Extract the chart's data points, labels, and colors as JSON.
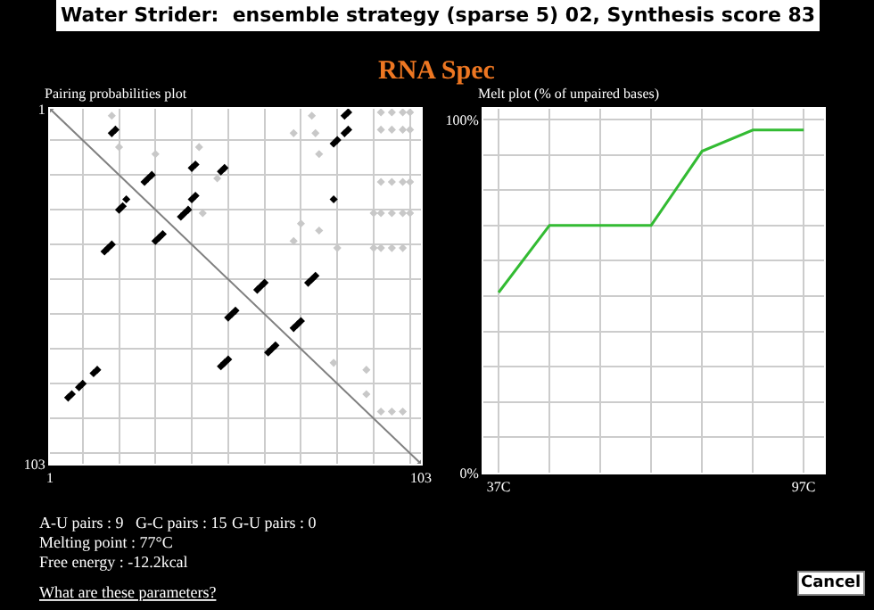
{
  "chart_data": [
    {
      "type": "scatter",
      "title": "Pairing probabilities plot",
      "xlim": [
        1,
        103
      ],
      "ylim": [
        103,
        1
      ],
      "xticks": [
        1,
        {
          "value": 10,
          "label": null
        },
        {
          "value": 20,
          "label": null
        },
        {
          "value": 30,
          "label": null
        },
        {
          "value": 40,
          "label": null
        },
        {
          "value": 50,
          "label": null
        },
        {
          "value": 60,
          "label": null
        },
        {
          "value": 70,
          "label": null
        },
        {
          "value": 80,
          "label": null
        },
        {
          "value": 90,
          "label": null
        },
        {
          "value": 100,
          "label": null
        },
        103
      ],
      "yticks": [
        1,
        {
          "value": 10,
          "label": null
        },
        {
          "value": 20,
          "label": null
        },
        {
          "value": 30,
          "label": null
        },
        {
          "value": 40,
          "label": null
        },
        {
          "value": 50,
          "label": null
        },
        {
          "value": 60,
          "label": null
        },
        {
          "value": 70,
          "label": null
        },
        {
          "value": 80,
          "label": null
        },
        {
          "value": 90,
          "label": null
        },
        {
          "value": 100,
          "label": null
        },
        103
      ],
      "grid": true,
      "marker": "diamond",
      "series": [
        {
          "color": "#000000",
          "x": [
            20,
            21,
            22,
            16,
            17,
            18,
            6,
            7,
            9,
            10,
            13,
            14,
            30,
            31,
            32,
            37,
            38,
            39,
            48,
            49,
            50,
            50,
            51,
            52,
            58,
            59,
            60,
            61,
            62,
            63,
            68,
            69,
            70,
            72,
            73,
            74,
            79,
            80,
            82,
            83,
            82,
            83,
            79,
            18,
            19,
            40,
            41,
            48,
            49,
            27,
            28,
            29,
            40,
            41
          ],
          "values": [
            30,
            29,
            27,
            42,
            41,
            40,
            84,
            83,
            81,
            80,
            77,
            76,
            39,
            38,
            37,
            32,
            31,
            30,
            75,
            74,
            73,
            61,
            60,
            59,
            53,
            52,
            51,
            71,
            70,
            69,
            64,
            63,
            62,
            51,
            50,
            49,
            11,
            10,
            8,
            7,
            3,
            2,
            27,
            8,
            7,
            18,
            17,
            19,
            18,
            22,
            21,
            20,
            27,
            26
          ]
        },
        {
          "color": "#c8c8c8",
          "x": [
            92,
            95,
            98,
            100,
            92,
            95,
            98,
            100,
            92,
            95,
            98,
            100,
            90,
            92,
            95,
            98,
            100,
            90,
            92,
            95,
            98,
            92,
            95,
            98,
            88,
            88,
            79,
            75,
            74,
            68,
            73,
            18,
            20,
            30,
            42,
            47,
            43,
            70,
            75,
            68,
            80
          ],
          "values": [
            2,
            2,
            2,
            2,
            7,
            7,
            7,
            7,
            22,
            22,
            22,
            22,
            31,
            31,
            31,
            31,
            31,
            41,
            41,
            41,
            41,
            88,
            88,
            88,
            76,
            83,
            74,
            14,
            8,
            8,
            3,
            3,
            12,
            14,
            12,
            21,
            31,
            34,
            36,
            39,
            41
          ]
        },
        {
          "type": "line",
          "color": "#808080",
          "x": [
            1,
            103
          ],
          "values": [
            1,
            103
          ]
        }
      ],
      "annotations": [
        "Water Strider:  ensemble strategy (sparse 5) 02, Synthesis score 83",
        "RNA Spec",
        "A-U pairs : 9",
        "G-C pairs : 15",
        "G-U pairs : 0",
        "Melting point : 77°C",
        "Free energy : -12.2kcal",
        "What are these parameters?",
        "Cancel"
      ]
    },
    {
      "type": "line",
      "title": "Melt plot (% of unpaired bases)",
      "x": [
        37,
        47,
        57,
        67,
        77,
        87,
        97
      ],
      "values": [
        51,
        70,
        70,
        70,
        91,
        97,
        97
      ],
      "color": "#33bb33",
      "xlim": [
        34,
        101
      ],
      "ylim": [
        0,
        103
      ],
      "xticks": [
        {
          "value": 37,
          "label": "37C"
        },
        {
          "value": 47,
          "label": null
        },
        {
          "value": 57,
          "label": null
        },
        {
          "value": 67,
          "label": null
        },
        {
          "value": 77,
          "label": null
        },
        {
          "value": 87,
          "label": null
        },
        {
          "value": 97,
          "label": "97C"
        }
      ],
      "yticks": [
        {
          "value": 0,
          "label": "0%"
        },
        {
          "value": 10,
          "label": null
        },
        {
          "value": 20,
          "label": null
        },
        {
          "value": 30,
          "label": null
        },
        {
          "value": 40,
          "label": null
        },
        {
          "value": 50,
          "label": null
        },
        {
          "value": 60,
          "label": null
        },
        {
          "value": 70,
          "label": null
        },
        {
          "value": 80,
          "label": null
        },
        {
          "value": 90,
          "label": null
        },
        {
          "value": 100,
          "label": "100%"
        }
      ],
      "grid": true
    }
  ]
}
